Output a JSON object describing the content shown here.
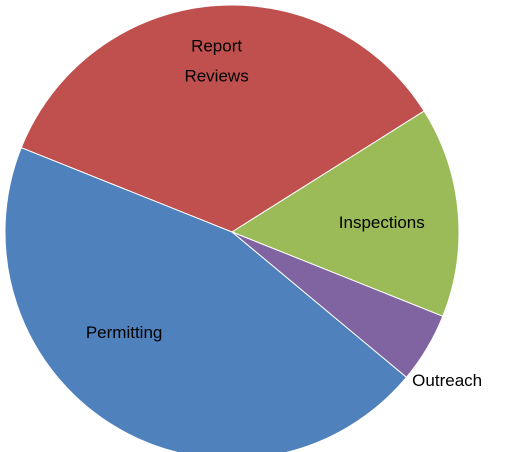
{
  "chart_data": {
    "type": "pie",
    "categories": [
      "Report Reviews",
      "Inspections",
      "Outreach",
      "Permitting"
    ],
    "values": [
      35,
      15,
      5,
      45
    ],
    "colors": [
      "#c0504d",
      "#9bbb59",
      "#8064a2",
      "#4f81bd"
    ]
  }
}
